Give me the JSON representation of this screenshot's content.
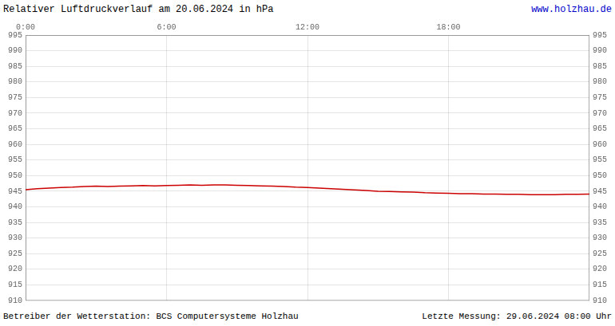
{
  "chart_data": {
    "type": "line",
    "title": "Relativer Luftdruckverlauf am 20.06.2024 in hPa",
    "annotations": [
      {
        "text": "www.holzhau.de",
        "color": "#0000cc"
      },
      {
        "text": "Betreiber der Wetterstation: BCS Computersysteme Holzhau"
      },
      {
        "text": "Letzte Messung: 29.06.2024 08:00 Uhr"
      }
    ],
    "x": [
      0.0,
      0.5,
      1.0,
      1.5,
      2.0,
      2.5,
      3.0,
      3.5,
      4.0,
      4.5,
      5.0,
      5.5,
      6.0,
      6.5,
      7.0,
      7.5,
      8.0,
      8.5,
      9.0,
      9.5,
      10.0,
      10.5,
      11.0,
      11.5,
      12.0,
      12.5,
      13.0,
      13.5,
      14.0,
      14.5,
      15.0,
      15.5,
      16.0,
      16.5,
      17.0,
      17.5,
      18.0,
      18.5,
      19.0,
      19.5,
      20.0,
      20.5,
      21.0,
      21.5,
      22.0,
      22.5,
      23.0,
      23.5,
      24.0
    ],
    "series": [
      {
        "color": "#cc0000",
        "values": [
          945.5,
          945.8,
          946.0,
          946.2,
          946.3,
          946.5,
          946.6,
          946.5,
          946.6,
          946.7,
          946.8,
          946.7,
          946.8,
          946.9,
          947.0,
          946.9,
          947.0,
          947.0,
          946.9,
          946.8,
          946.7,
          946.6,
          946.5,
          946.3,
          946.2,
          946.0,
          945.8,
          945.6,
          945.4,
          945.2,
          945.0,
          944.9,
          944.8,
          944.7,
          944.5,
          944.4,
          944.3,
          944.2,
          944.2,
          944.1,
          944.1,
          944.0,
          944.0,
          943.9,
          943.9,
          943.9,
          944.0,
          944.0,
          944.1
        ]
      }
    ],
    "xlim": [
      0,
      24
    ],
    "xticks": [
      {
        "value": 0,
        "label": "0:00"
      },
      {
        "value": 6,
        "label": "6:00"
      },
      {
        "value": 12,
        "label": "12:00"
      },
      {
        "value": 18,
        "label": "18:00"
      }
    ],
    "ylim": [
      910,
      995
    ],
    "yticks": [
      910,
      915,
      920,
      925,
      930,
      935,
      940,
      945,
      950,
      955,
      960,
      965,
      970,
      975,
      980,
      985,
      990,
      995
    ],
    "grid": true
  }
}
